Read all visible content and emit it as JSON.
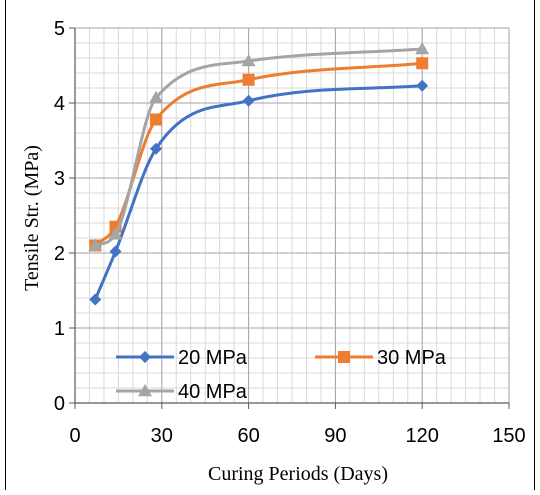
{
  "chart_data": {
    "type": "line",
    "title": "",
    "xlabel": "Curing Periods (Days)",
    "ylabel": "Tensile Str. (MPa)",
    "xlim": [
      0,
      150
    ],
    "ylim": [
      0,
      5
    ],
    "x_ticks": [
      0,
      30,
      60,
      90,
      120,
      150
    ],
    "y_ticks": [
      0,
      1,
      2,
      3,
      4,
      5
    ],
    "x_minor_step": 5,
    "y_minor_step": 0.2,
    "grid": true,
    "legend_position": "bottom-left",
    "x": [
      7,
      14,
      28,
      60,
      120
    ],
    "series": [
      {
        "name": "20 MPa",
        "color": "#4472c4",
        "marker": "diamond",
        "values": [
          1.38,
          2.02,
          3.39,
          4.03,
          4.23
        ]
      },
      {
        "name": "30 MPa",
        "color": "#ed7d31",
        "marker": "square",
        "values": [
          2.1,
          2.35,
          3.78,
          4.31,
          4.53
        ]
      },
      {
        "name": "40 MPa",
        "color": "#a5a5a5",
        "marker": "triangle",
        "values": [
          2.1,
          2.25,
          4.07,
          4.56,
          4.72
        ]
      }
    ]
  }
}
